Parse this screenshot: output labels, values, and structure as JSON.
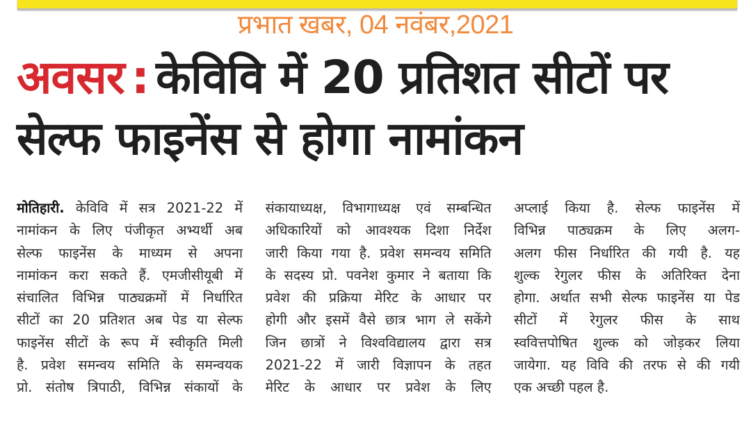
{
  "source_caption": "प्रभात खबर, 04 नवंबर,2021",
  "headline": {
    "kicker": "अवसर",
    "separator": ":",
    "line1": "केविवि में 20 प्रतिशत सीटों पर",
    "line2": "सेल्फ फाइनेंस से होगा नामांकन"
  },
  "article": {
    "dateline": "मोतिहारी.",
    "columns": [
      [
        "केविवि में सत्र 2021-22 में",
        "नामांकन के लिए पंजीकृत अभ्यर्थी अब",
        "सेल्फ फाइनेंस के माध्यम से अपना",
        "नामांकन करा सकते हैं. एमजीसीयूबी में",
        "संचालित विभिन्न पाठ्यक्रमों में निर्धारित",
        "सीटों का 20 प्रतिशत अब पेड या सेल्फ",
        "फाइनेंस सीटों के रूप में स्वीकृति मिली",
        "है. प्रवेश समन्वय समिति के समन्वयक",
        "प्रो. संतोष त्रिपाठी, विभिन्न संकायों के"
      ],
      [
        "संकायाध्यक्ष, विभागाध्यक्ष एवं सम्बन्धित",
        "अधिकारियों को आवश्यक दिशा निर्देश",
        "जारी किया गया है. प्रवेश समन्वय समिति",
        "के सदस्य प्रो. पवनेश कुमार ने बताया कि",
        "प्रवेश की प्रक्रिया मेरिट के आधार पर",
        "होगी और इसमें वैसे छात्र भाग ले सकेंगे",
        "जिन छात्रों ने विश्वविद्यालय द्वारा सत्र",
        "2021-22 में  जारी विज्ञापन के तहत",
        "मेरिट के आधार पर प्रवेश के लिए"
      ],
      [
        "अप्लाई किया है. सेल्फ फाइनेंस में",
        "विभिन्न पाठ्यक्रम के लिए अलग-",
        "अलग फीस निर्धारित की गयी है. यह",
        "शुल्क रेगुलर फीस के अतिरिक्त देना",
        "होगा. अर्थात सभी सेल्फ फाइनेंस या पेड",
        "सीटों में रेगुलर फीस के साथ",
        "स्ववित्तपोषित शुल्क को जोड़कर लिया",
        "जायेगा. यह विवि की तरफ से की गयी",
        "एक अच्छी पहल है."
      ]
    ]
  },
  "colors": {
    "kicker": "#d7282f",
    "caption": "#f08a3c",
    "band": "#f7e41a"
  }
}
